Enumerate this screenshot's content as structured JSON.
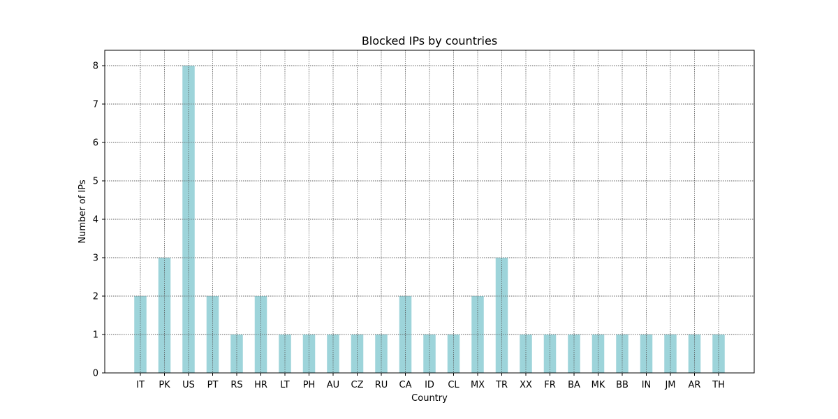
{
  "chart_data": {
    "type": "bar",
    "title": "Blocked IPs by countries",
    "xlabel": "Country",
    "ylabel": "Number of IPs",
    "categories": [
      "IT",
      "PK",
      "US",
      "PT",
      "RS",
      "HR",
      "LT",
      "PH",
      "AU",
      "CZ",
      "RU",
      "CA",
      "ID",
      "CL",
      "MX",
      "TR",
      "XX",
      "FR",
      "BA",
      "MK",
      "BB",
      "IN",
      "JM",
      "AR",
      "TH"
    ],
    "values": [
      2,
      3,
      8,
      2,
      1,
      2,
      1,
      1,
      1,
      1,
      1,
      2,
      1,
      1,
      2,
      3,
      1,
      1,
      1,
      1,
      1,
      1,
      1,
      1,
      1
    ],
    "ylim": [
      0,
      8.4
    ],
    "yticks": [
      0,
      1,
      2,
      3,
      4,
      5,
      6,
      7,
      8
    ],
    "grid": true,
    "bar_color": "#9dd4da"
  }
}
